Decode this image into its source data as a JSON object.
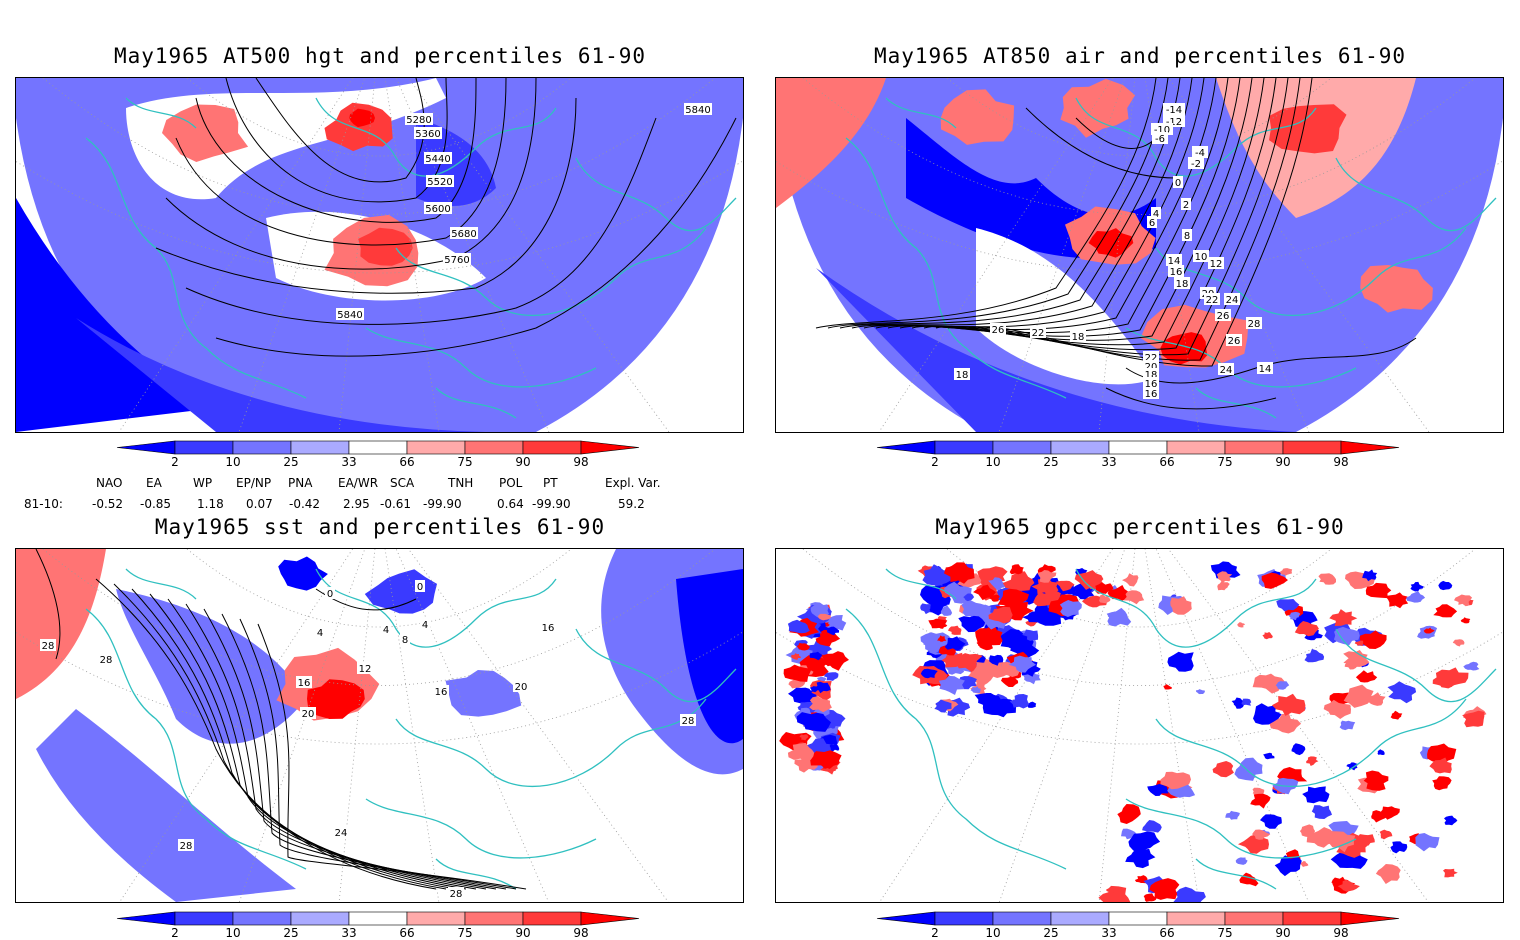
{
  "panels": [
    {
      "title": "May1965 AT500 hgt and percentiles 61-90",
      "contour_labels": [
        "5280",
        "5360",
        "5440",
        "5520",
        "5600",
        "5680",
        "5760",
        "5840",
        "5840"
      ]
    },
    {
      "title": "May1965 AT850 air and percentiles 61-90",
      "contour_labels": [
        "-14",
        "-12",
        "-10",
        "-6",
        "-4",
        "-2",
        "0",
        "2",
        "4",
        "6",
        "8",
        "10",
        "12",
        "14",
        "16",
        "18",
        "20",
        "22",
        "24",
        "26",
        "28",
        "26",
        "24",
        "22",
        "20",
        "18",
        "16",
        "14",
        "16",
        "18",
        "22",
        "26",
        "18"
      ]
    },
    {
      "title": "May1965 sst and percentiles 61-90",
      "contour_labels": [
        "28",
        "28",
        "0",
        "0",
        "4",
        "4",
        "8",
        "12",
        "16",
        "16",
        "20",
        "20",
        "24",
        "28",
        "28",
        "28",
        "16",
        "4"
      ]
    },
    {
      "title": "May1965 gpcc percentiles 61-90",
      "contour_labels": []
    }
  ],
  "colorbar": {
    "tick_labels": [
      "2",
      "10",
      "25",
      "33",
      "66",
      "75",
      "90",
      "98"
    ],
    "colors": [
      "#0000ff",
      "#3a3aff",
      "#7474ff",
      "#aaaaff",
      "#ffffff",
      "#ffaaaa",
      "#ff7474",
      "#ff3a3a",
      "#ff0000"
    ]
  },
  "indices": {
    "headers": [
      "NAO",
      "EA",
      "WP",
      "EP/NP",
      "PNA",
      "EA/WR",
      "SCA",
      "TNH",
      "POL",
      "PT",
      "Expl. Var."
    ],
    "row_label": "81-10:",
    "values": [
      "-0.52",
      "-0.85",
      "1.18",
      "0.07",
      "-0.42",
      "2.95",
      "-0.61",
      "-99.90",
      "0.64",
      "-99.90",
      "59.2"
    ]
  },
  "colors": {
    "coastline": "#30c0c0",
    "contour": "#000000",
    "grid": "#9a9a9a"
  }
}
